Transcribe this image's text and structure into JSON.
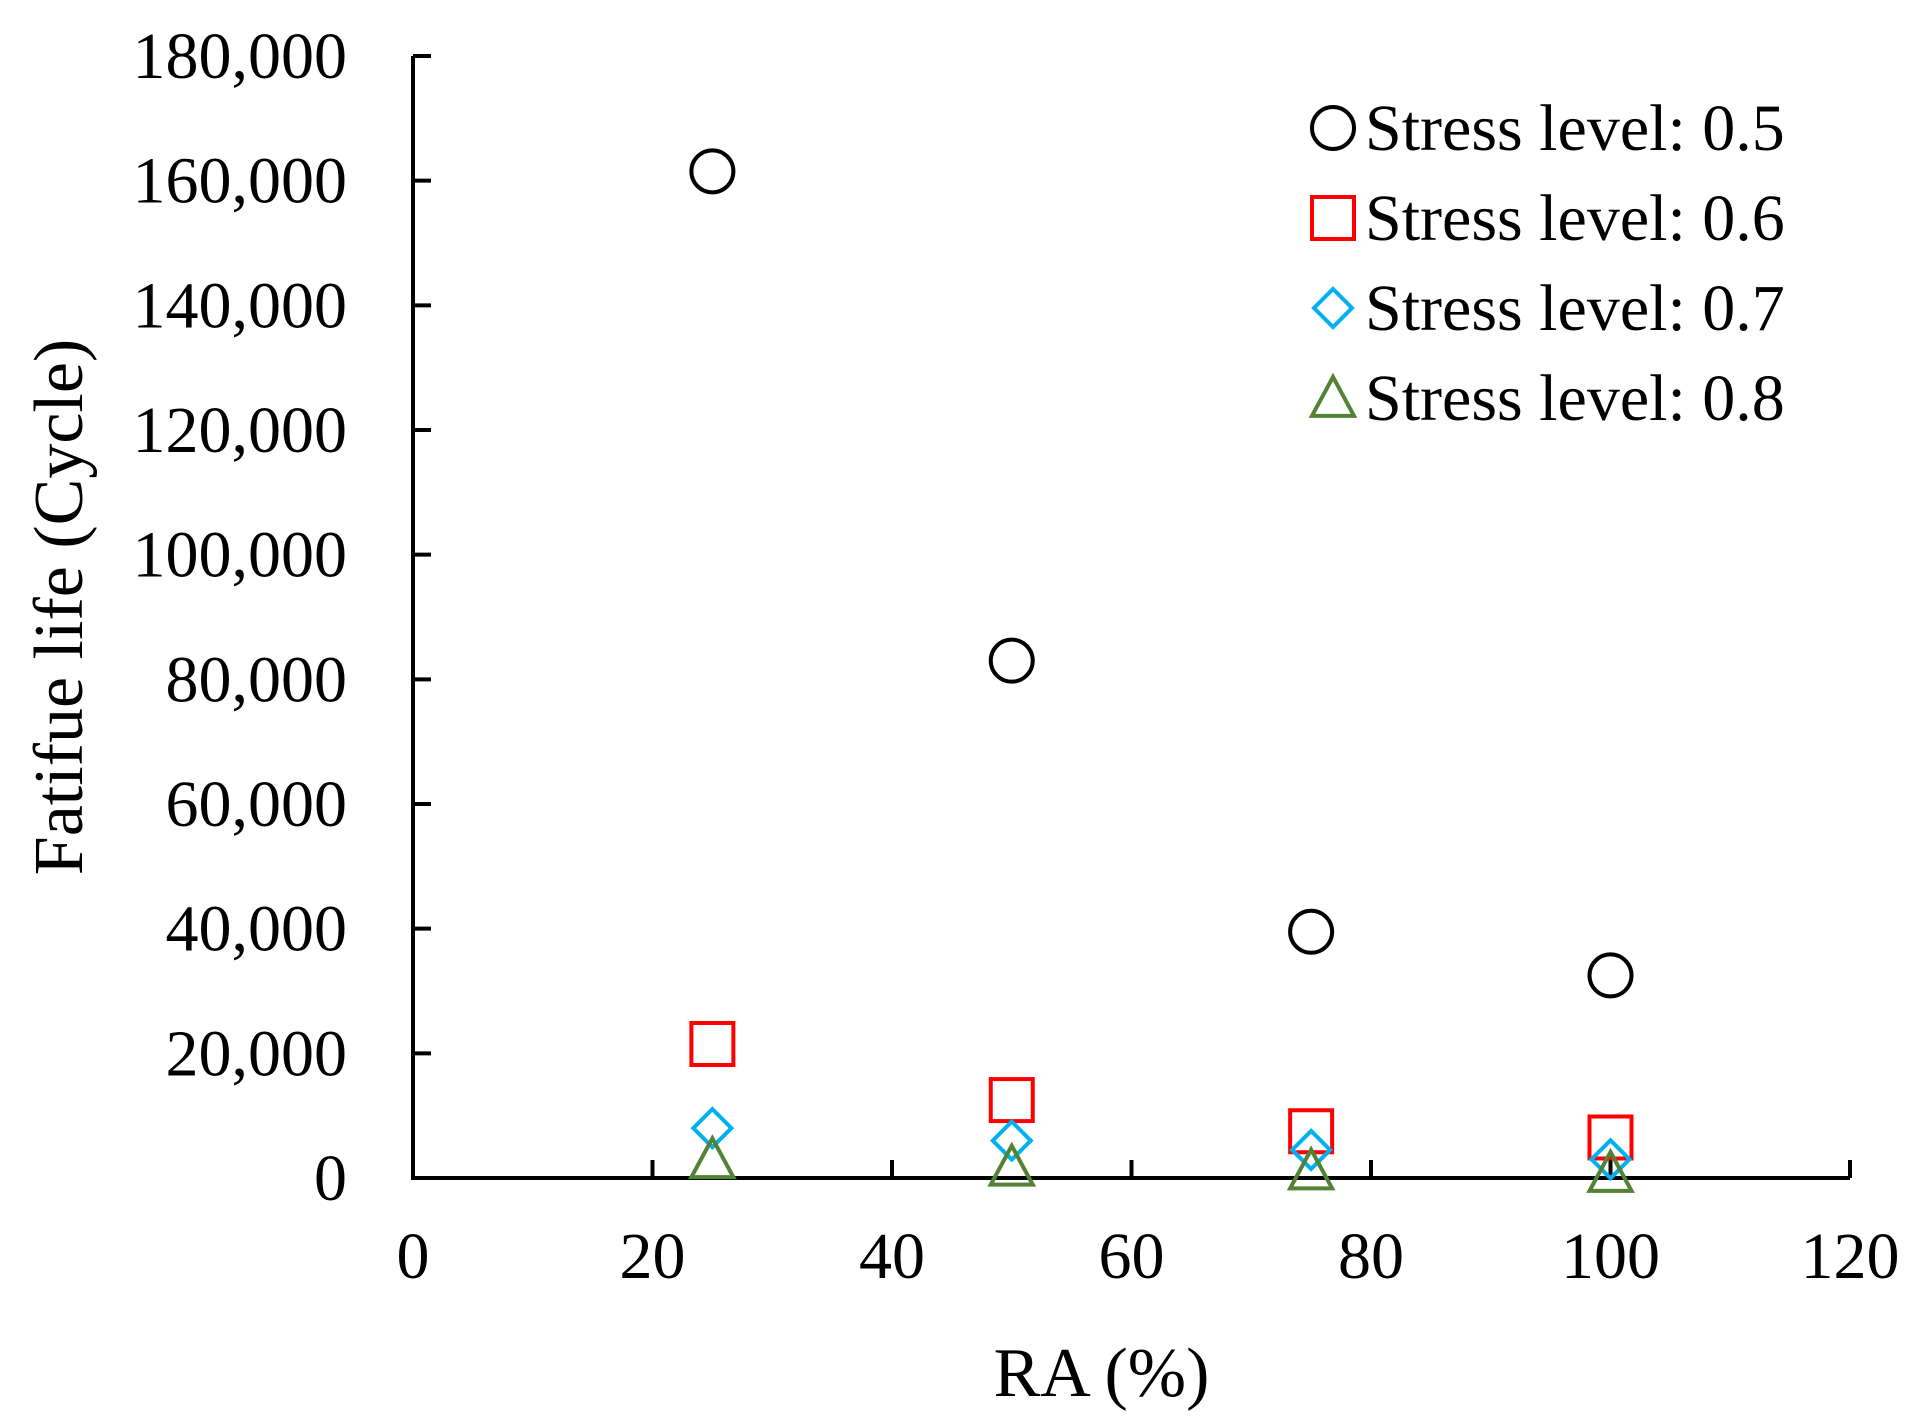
{
  "chart_data": {
    "type": "scatter",
    "xlabel": "RA (%)",
    "ylabel": "Fatifue life (Cycle)",
    "xlim": [
      0,
      120
    ],
    "ylim": [
      0,
      180000
    ],
    "x_ticks": [
      0,
      20,
      40,
      60,
      80,
      100,
      120
    ],
    "y_ticks": [
      0,
      20000,
      40000,
      60000,
      80000,
      100000,
      120000,
      140000,
      160000,
      180000
    ],
    "x_tick_labels": [
      "0",
      "20",
      "40",
      "60",
      "80",
      "100",
      "120"
    ],
    "y_tick_labels": [
      "0",
      "20,000",
      "40,000",
      "60,000",
      "80,000",
      "100,000",
      "120,000",
      "140,000",
      "160,000",
      "180,000"
    ],
    "grid": false,
    "legend_position": "top-right",
    "series": [
      {
        "name": "Stress level: 0.5",
        "marker": "circle",
        "color": "#000000",
        "x": [
          25,
          50,
          75,
          100
        ],
        "y": [
          161500,
          83000,
          39500,
          32500
        ]
      },
      {
        "name": "Stress level: 0.6",
        "marker": "square",
        "color": "#ff0000",
        "x": [
          25,
          50,
          75,
          100
        ],
        "y": [
          21500,
          12500,
          7500,
          6500
        ]
      },
      {
        "name": "Stress level: 0.7",
        "marker": "diamond",
        "color": "#00b0f0",
        "x": [
          25,
          50,
          75,
          100
        ],
        "y": [
          8000,
          6000,
          4500,
          3000
        ]
      },
      {
        "name": "Stress level: 0.8",
        "marker": "triangle",
        "color": "#548235",
        "x": [
          25,
          50,
          75,
          100
        ],
        "y": [
          3000,
          1800,
          1200,
          800
        ]
      }
    ]
  }
}
